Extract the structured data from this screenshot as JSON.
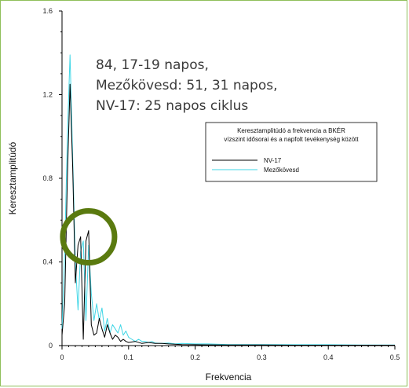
{
  "chart_data": {
    "type": "line",
    "xlabel": "Frekvencia",
    "ylabel": "Keresztamplitúdó",
    "xlim": [
      0,
      0.5
    ],
    "ylim": [
      0,
      1.6
    ],
    "x_ticks": [
      "0",
      "0.1",
      "0.2",
      "0.3",
      "0.4",
      "0.5"
    ],
    "y_ticks": [
      "0",
      "0.4",
      "0.8",
      "1.2",
      "1.6"
    ],
    "annotation": [
      "84, 17-19 napos,",
      "Mezőkövesd: 51, 31 napos,",
      "NV-17: 25 napos ciklus"
    ],
    "legend": {
      "title": [
        "Keresztamplitúdó a frekvencia a BKÉR",
        "vízszint idősorai és a napfolt tevékenység között"
      ],
      "placement": "center-right"
    },
    "highlight_circle": {
      "x": 0.04,
      "y": 0.52
    },
    "series": [
      {
        "name": "NV-17",
        "color": "#000000",
        "x": [
          0,
          0.004,
          0.008,
          0.012,
          0.016,
          0.02,
          0.024,
          0.028,
          0.032,
          0.036,
          0.04,
          0.044,
          0.048,
          0.052,
          0.056,
          0.06,
          0.064,
          0.068,
          0.072,
          0.076,
          0.08,
          0.084,
          0.088,
          0.092,
          0.096,
          0.1,
          0.11,
          0.12,
          0.13,
          0.14,
          0.15,
          0.16,
          0.18,
          0.2,
          0.25,
          0.3,
          0.35,
          0.4,
          0.45,
          0.5
        ],
        "values": [
          0.05,
          0.2,
          0.8,
          1.25,
          0.85,
          0.3,
          0.48,
          0.52,
          0.03,
          0.5,
          0.55,
          0.1,
          0.05,
          0.06,
          0.13,
          0.08,
          0.04,
          0.1,
          0.06,
          0.03,
          0.05,
          0.04,
          0.02,
          0.03,
          0.02,
          0.015,
          0.02,
          0.01,
          0.015,
          0.01,
          0.01,
          0.008,
          0.005,
          0.004,
          0.003,
          0.003,
          0.002,
          0.002,
          0.002,
          0.002
        ]
      },
      {
        "name": "Mezőkövesd",
        "color": "#3fd6e6",
        "x": [
          0,
          0.004,
          0.008,
          0.012,
          0.016,
          0.02,
          0.024,
          0.028,
          0.032,
          0.036,
          0.04,
          0.044,
          0.048,
          0.052,
          0.056,
          0.06,
          0.064,
          0.068,
          0.072,
          0.076,
          0.08,
          0.084,
          0.088,
          0.092,
          0.096,
          0.1,
          0.105,
          0.11,
          0.115,
          0.12,
          0.125,
          0.13,
          0.135,
          0.14,
          0.15,
          0.16,
          0.17,
          0.18,
          0.2,
          0.22,
          0.25,
          0.3,
          0.35,
          0.4,
          0.45,
          0.5
        ],
        "values": [
          0.08,
          0.45,
          1.0,
          1.39,
          0.9,
          0.4,
          0.17,
          0.45,
          0.5,
          0.12,
          0.48,
          0.25,
          0.12,
          0.2,
          0.12,
          0.18,
          0.07,
          0.13,
          0.06,
          0.1,
          0.08,
          0.06,
          0.1,
          0.05,
          0.07,
          0.04,
          0.03,
          0.02,
          0.03,
          0.02,
          0.02,
          0.015,
          0.02,
          0.012,
          0.01,
          0.012,
          0.008,
          0.01,
          0.008,
          0.008,
          0.005,
          0.005,
          0.004,
          0.004,
          0.003,
          0.003
        ]
      }
    ]
  }
}
